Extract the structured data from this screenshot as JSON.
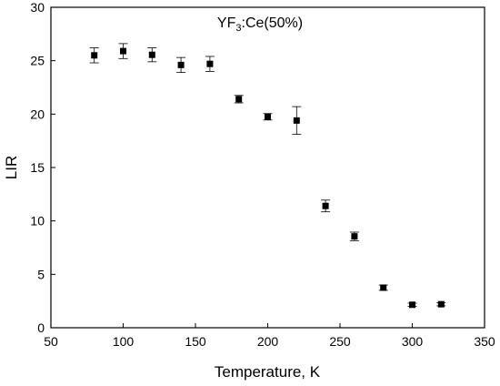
{
  "chart_data": {
    "type": "scatter",
    "title_main": "YF",
    "title_sub": "3",
    "title_rest": ":Ce(50%)",
    "xlabel": "Temperature, K",
    "ylabel": "LIR",
    "xlim": [
      50,
      350
    ],
    "ylim": [
      0,
      30
    ],
    "xticks": [
      50,
      100,
      150,
      200,
      250,
      300,
      350
    ],
    "yticks": [
      0,
      5,
      10,
      15,
      20,
      25,
      30
    ],
    "grid": false,
    "legend": "none",
    "marker": "square",
    "marker_color": "#000000",
    "points": [
      {
        "x": 80,
        "y": 25.5,
        "err": 0.7
      },
      {
        "x": 100,
        "y": 25.9,
        "err": 0.7
      },
      {
        "x": 120,
        "y": 25.55,
        "err": 0.65
      },
      {
        "x": 140,
        "y": 24.6,
        "err": 0.7
      },
      {
        "x": 160,
        "y": 24.7,
        "err": 0.7
      },
      {
        "x": 180,
        "y": 21.4,
        "err": 0.35
      },
      {
        "x": 200,
        "y": 19.75,
        "err": 0.3
      },
      {
        "x": 220,
        "y": 19.4,
        "err": 1.3
      },
      {
        "x": 240,
        "y": 11.4,
        "err": 0.55
      },
      {
        "x": 260,
        "y": 8.55,
        "err": 0.4
      },
      {
        "x": 280,
        "y": 3.75,
        "err": 0.25
      },
      {
        "x": 300,
        "y": 2.15,
        "err": 0.15
      },
      {
        "x": 320,
        "y": 2.2,
        "err": 0.15
      }
    ]
  }
}
